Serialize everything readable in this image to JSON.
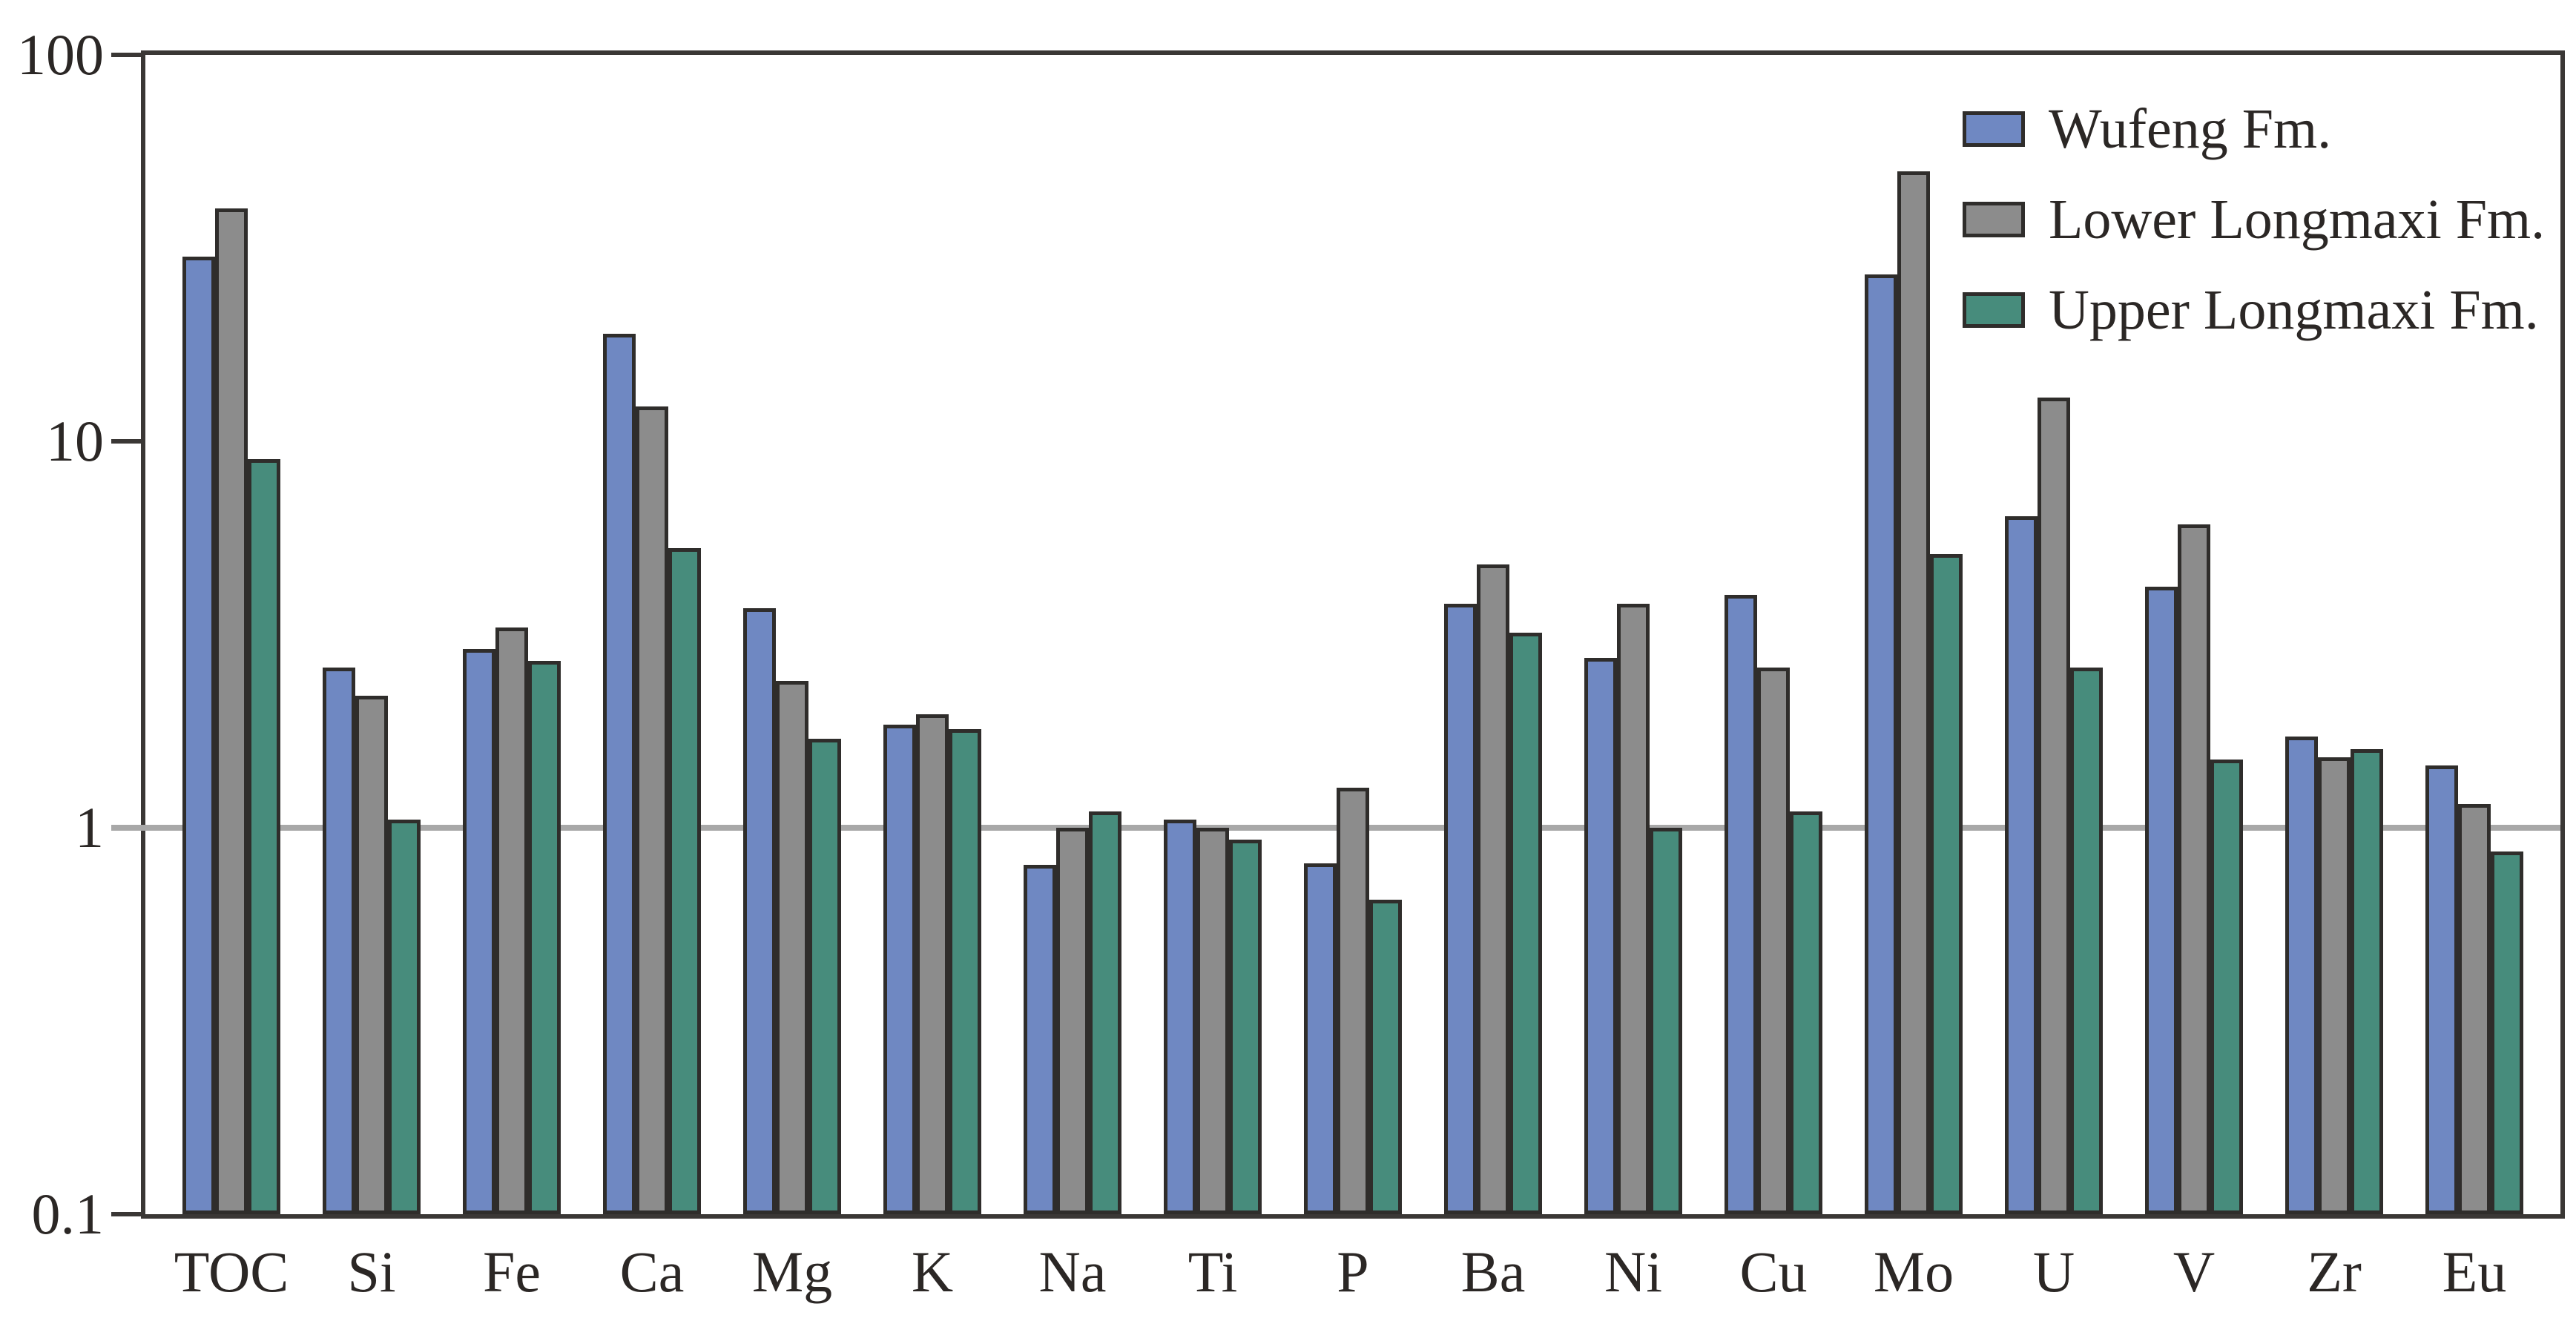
{
  "figure": {
    "background": "#ffffff",
    "text_color": "#2b2725",
    "frame_color": "#3a3735",
    "bar_border_color": "#2f2d2b"
  },
  "chart_data": {
    "type": "bar",
    "scale": "log10",
    "title": "",
    "xlabel": "",
    "ylabel": "",
    "ylim": [
      0.1,
      100
    ],
    "grid": false,
    "legend_position": "top-right",
    "reference_line": {
      "value": 1,
      "color": "#a8a8a8"
    },
    "yticks": [
      {
        "label": "100",
        "value": 100
      },
      {
        "label": "10",
        "value": 10
      },
      {
        "label": "1",
        "value": 1
      },
      {
        "label": "0.1",
        "value": 0.1
      }
    ],
    "categories": [
      "TOC",
      "Si",
      "Fe",
      "Ca",
      "Mg",
      "K",
      "Na",
      "Ti",
      "P",
      "Ba",
      "Ni",
      "Cu",
      "Mo",
      "U",
      "V",
      "Zr",
      "Eu"
    ],
    "series": [
      {
        "name": "Wufeng Fm.",
        "color": "#6f88c2",
        "values": [
          30,
          2.6,
          2.9,
          19,
          3.7,
          1.85,
          0.8,
          1.05,
          0.81,
          3.8,
          2.75,
          4.0,
          27,
          6.4,
          4.2,
          1.72,
          1.45
        ]
      },
      {
        "name": "Lower Longmaxi Fm.",
        "color": "#8c8c8c",
        "values": [
          40,
          2.2,
          3.3,
          12.3,
          2.4,
          1.97,
          1.0,
          1.0,
          1.27,
          4.8,
          3.8,
          2.6,
          50,
          13,
          6.1,
          1.52,
          1.15
        ]
      },
      {
        "name": "Upper Longmaxi Fm.",
        "color": "#478c7c",
        "values": [
          9.0,
          1.05,
          2.7,
          5.3,
          1.7,
          1.8,
          1.1,
          0.93,
          0.65,
          3.2,
          1.0,
          1.1,
          5.1,
          2.6,
          1.5,
          1.6,
          0.87
        ]
      }
    ]
  }
}
